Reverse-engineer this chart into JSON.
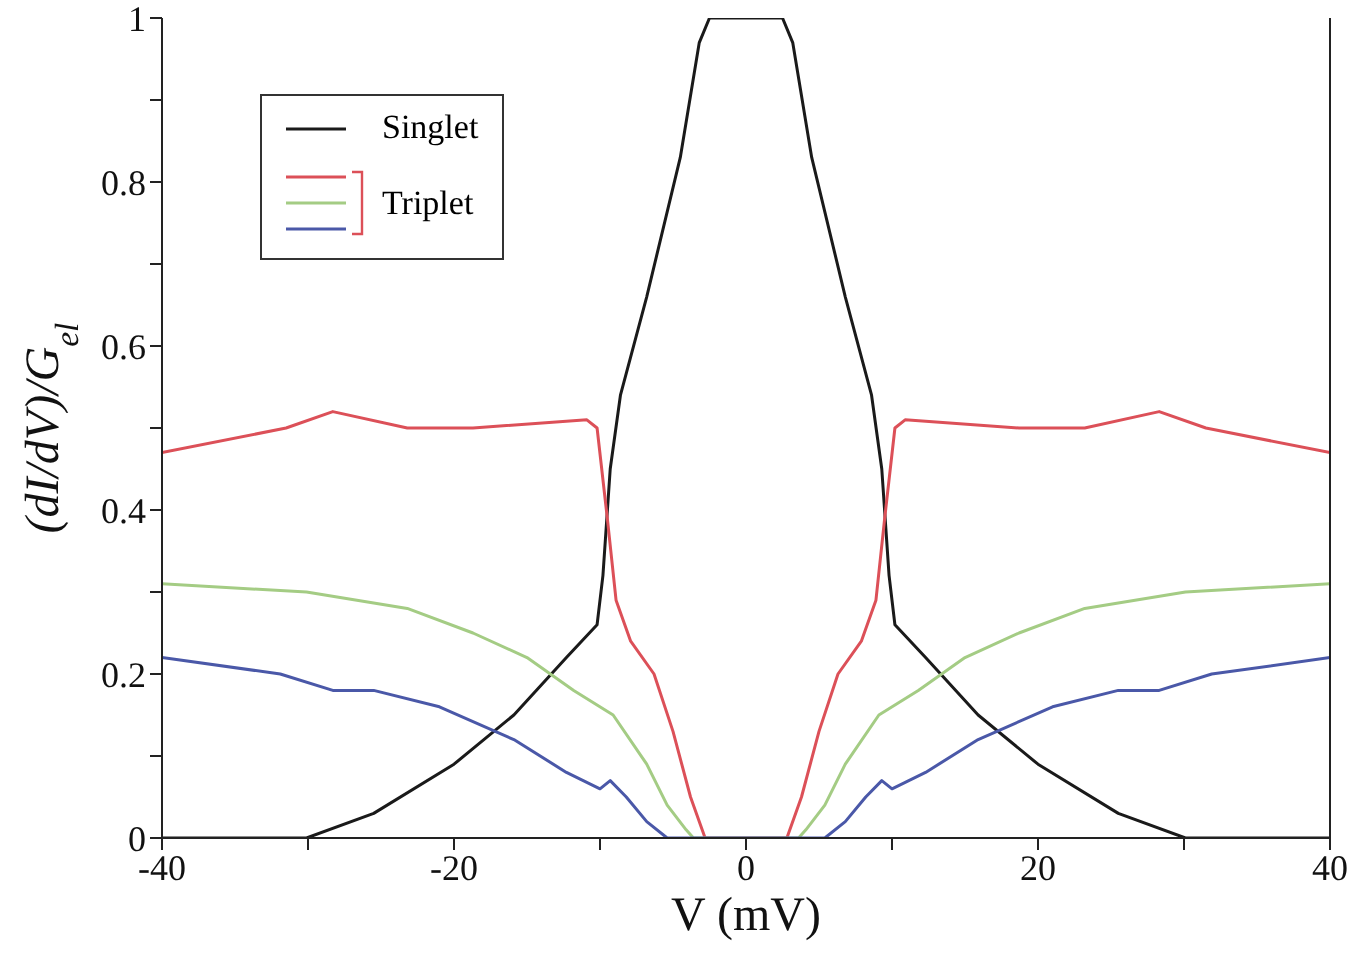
{
  "chart_data": {
    "type": "line",
    "xlabel": "V (mV)",
    "ylabel": "(dI/dV)/G$_{el}$",
    "xlim": [
      -40,
      40
    ],
    "xticks": [
      -40,
      {
        "value": -30,
        "label": null
      },
      -20,
      {
        "value": -10,
        "label": null
      },
      0,
      {
        "value": 10,
        "label": null
      },
      20,
      {
        "value": 30,
        "label": null
      },
      40
    ],
    "ylim": [
      0,
      1
    ],
    "yticks": [
      0,
      {
        "value": 0.1,
        "label": null
      },
      0.2,
      {
        "value": 0.3,
        "label": null
      },
      0.4,
      {
        "value": 0.5,
        "label": null
      },
      0.6,
      {
        "value": 0.7,
        "label": null
      },
      0.8,
      {
        "value": 0.9,
        "label": null
      },
      1
    ],
    "grid": false,
    "legend": "top left",
    "marker": "none",
    "line_style": "solid",
    "series": [
      {
        "name": "Singlet",
        "color": "#1a1a1a",
        "x": [
          -40,
          -30.1,
          -25.5,
          -20,
          -15.9,
          -12.3,
          -10.2,
          -9.8,
          -9.3,
          -8.6,
          -6.8,
          -4.5,
          -3.2,
          -2.5,
          0,
          2.5,
          3.2,
          4.5,
          6.8,
          8.6,
          9.3,
          9.8,
          10.2,
          12.3,
          15.9,
          20,
          25.5,
          30.1,
          40
        ],
        "values": [
          0,
          0,
          0.03,
          0.09,
          0.15,
          0.22,
          0.26,
          0.32,
          0.45,
          0.54,
          0.66,
          0.83,
          0.97,
          1,
          1,
          1,
          0.97,
          0.83,
          0.66,
          0.54,
          0.45,
          0.32,
          0.26,
          0.22,
          0.15,
          0.09,
          0.03,
          0,
          0
        ]
      },
      {
        "name": "Triplet",
        "color": "#dc5058",
        "x": [
          -40,
          -31.5,
          -28.3,
          -23.2,
          -18.7,
          -10.9,
          -10.2,
          -9.5,
          -8.9,
          -7.9,
          -6.3,
          -5,
          -3.8,
          -2.8,
          2.8,
          3.8,
          5,
          6.3,
          7.9,
          8.9,
          9.5,
          10.2,
          10.9,
          18.7,
          23.2,
          28.3,
          31.5,
          40
        ],
        "values": [
          0.47,
          0.5,
          0.52,
          0.5,
          0.5,
          0.51,
          0.5,
          0.39,
          0.29,
          0.24,
          0.2,
          0.13,
          0.05,
          0,
          0,
          0.05,
          0.13,
          0.2,
          0.24,
          0.29,
          0.39,
          0.5,
          0.51,
          0.5,
          0.5,
          0.52,
          0.5,
          0.47
        ]
      },
      {
        "color": "#a4cc84",
        "x": [
          -40,
          -30.1,
          -23.2,
          -18.7,
          -15,
          -11.8,
          -9.1,
          -6.8,
          -5.4,
          -4.1,
          -3.6,
          3.6,
          4.1,
          5.4,
          6.8,
          9.1,
          11.8,
          15,
          18.7,
          23.2,
          30.1,
          40
        ],
        "values": [
          0.31,
          0.3,
          0.28,
          0.25,
          0.22,
          0.18,
          0.15,
          0.09,
          0.04,
          0.01,
          0,
          0,
          0.01,
          0.04,
          0.09,
          0.15,
          0.18,
          0.22,
          0.25,
          0.28,
          0.3,
          0.31
        ]
      },
      {
        "color": "#4a58a8",
        "x": [
          -40,
          -31.9,
          -28.3,
          -25.5,
          -21,
          -15.9,
          -12.3,
          -10,
          -9.3,
          -8.2,
          -6.8,
          -5.4,
          5.4,
          6.8,
          8.2,
          9.3,
          10,
          12.3,
          15.9,
          21,
          25.5,
          28.3,
          31.9,
          40
        ],
        "values": [
          0.22,
          0.2,
          0.18,
          0.18,
          0.16,
          0.12,
          0.08,
          0.06,
          0.07,
          0.05,
          0.02,
          0,
          0,
          0.02,
          0.05,
          0.07,
          0.06,
          0.08,
          0.12,
          0.16,
          0.18,
          0.18,
          0.2,
          0.22
        ]
      }
    ]
  }
}
